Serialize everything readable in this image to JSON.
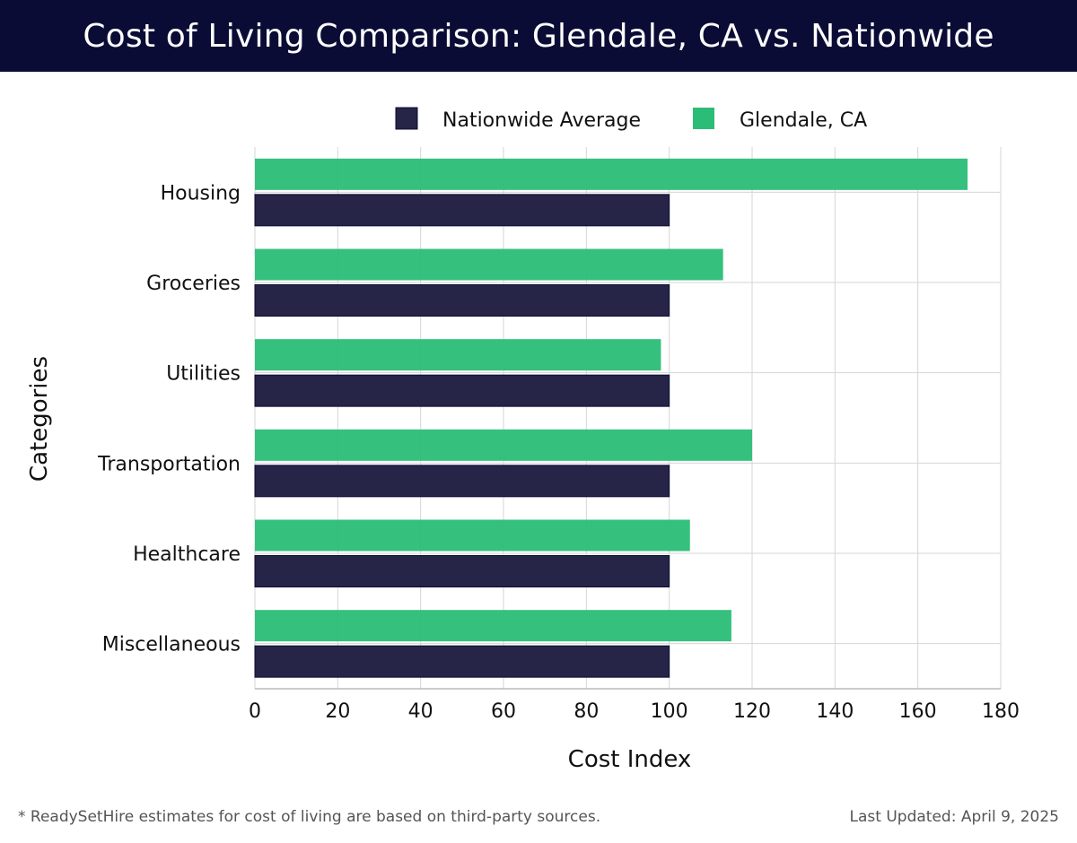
{
  "header": {
    "title": "Cost of Living Comparison: Glendale, CA vs. Nationwide"
  },
  "colors": {
    "header_bg": "#0b0c35",
    "nationwide": "#262447",
    "glendale": "#2bbd77",
    "grid": "#d6d6d6"
  },
  "chart_data": {
    "type": "bar",
    "orientation": "horizontal",
    "categories": [
      "Housing",
      "Groceries",
      "Utilities",
      "Transportation",
      "Healthcare",
      "Miscellaneous"
    ],
    "series": [
      {
        "name": "Nationwide Average",
        "values": [
          100,
          100,
          100,
          100,
          100,
          100
        ]
      },
      {
        "name": "Glendale, CA",
        "values": [
          172,
          113,
          98,
          120,
          105,
          115
        ]
      }
    ],
    "xlabel": "Cost Index",
    "ylabel": "Categories",
    "xlim": [
      0,
      180
    ],
    "xticks": [
      0,
      20,
      40,
      60,
      80,
      100,
      120,
      140,
      160,
      180
    ],
    "grid": true,
    "legend": "top-center"
  },
  "footer": {
    "note": "* ReadySetHire estimates for cost of living are based on third-party sources.",
    "updated": "Last Updated: April 9, 2025"
  }
}
